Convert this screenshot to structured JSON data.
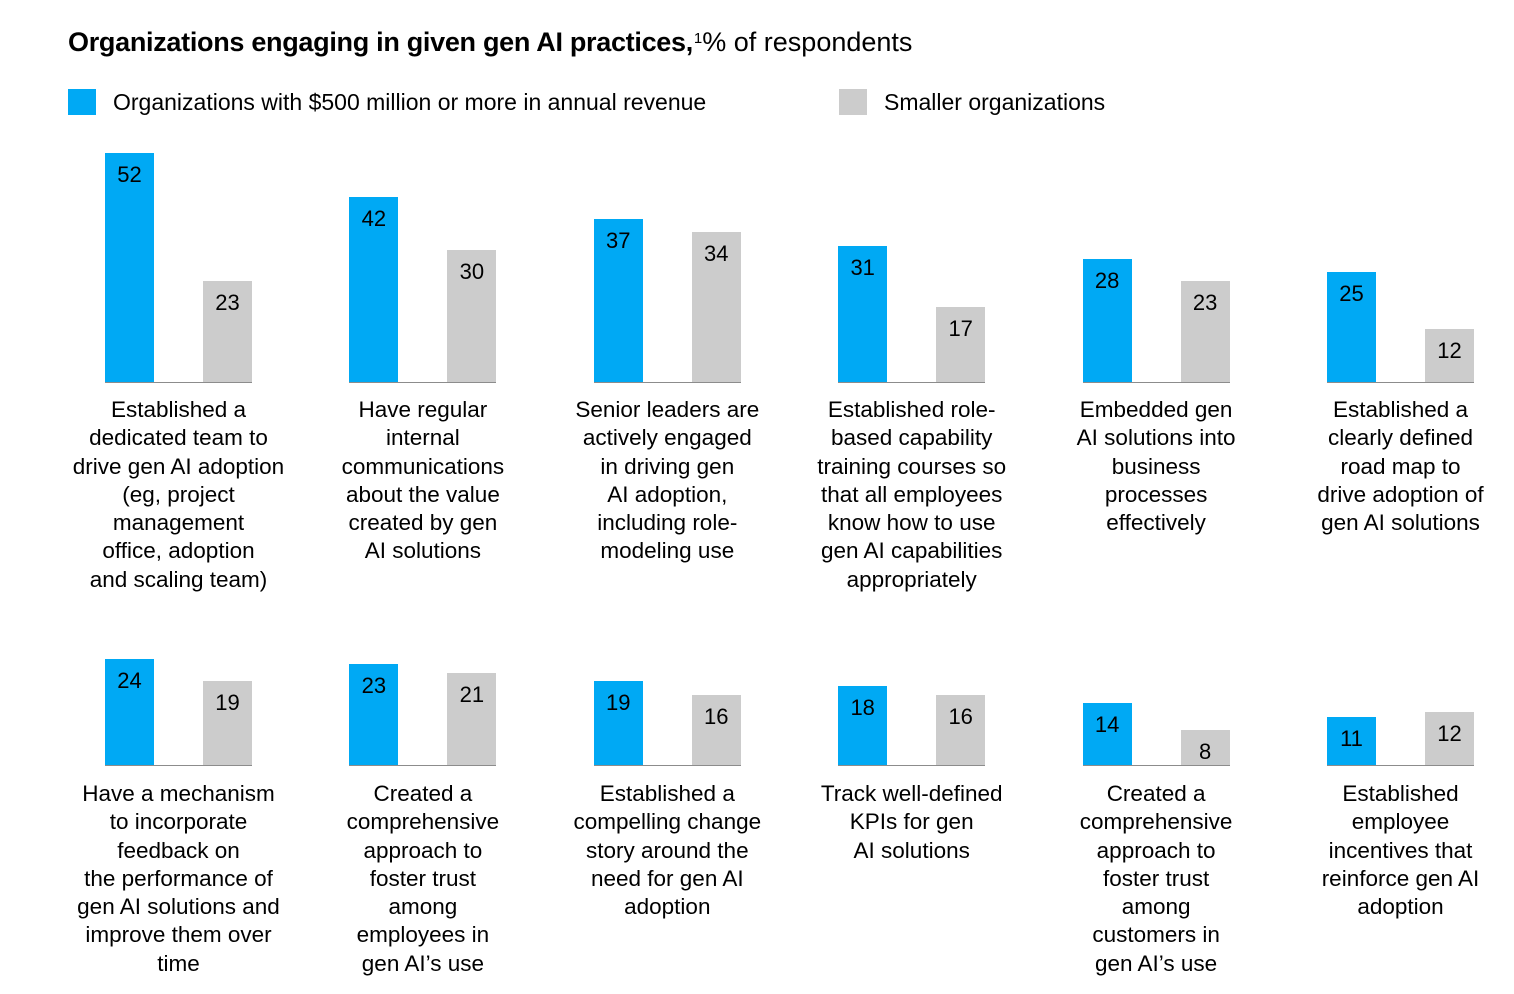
{
  "title": {
    "bold": "Organizations engaging in given gen AI practices,",
    "footnote": "1",
    "rest": "% of respondents"
  },
  "legend": [
    {
      "label": "Organizations with $500 million or more in annual revenue",
      "color": "#00a9f4"
    },
    {
      "label": "Smaller organizations",
      "color": "#cccccc"
    }
  ],
  "chart_data": {
    "type": "bar",
    "unit": "% of respondents",
    "series": [
      {
        "name": "Organizations with $500 million or more in annual revenue",
        "color": "#00a9f4",
        "values": [
          52,
          42,
          37,
          31,
          28,
          25,
          24,
          23,
          19,
          18,
          14,
          11
        ]
      },
      {
        "name": "Smaller organizations",
        "color": "#cccccc",
        "values": [
          23,
          30,
          34,
          17,
          23,
          12,
          19,
          21,
          16,
          16,
          8,
          12
        ]
      }
    ],
    "categories": [
      "Established a\ndedicated team to\ndrive gen AI adoption\n(eg, project\nmanagement\noffice, adoption\nand scaling team)",
      "Have regular\ninternal\ncommunications\nabout the value\ncreated by gen\nAI solutions",
      "Senior leaders are\nactively engaged\nin driving gen\nAI adoption,\nincluding role-\nmodeling use",
      "Established role-\nbased capability\ntraining courses so\nthat all employees\nknow how to use\ngen AI capabilities\nappropriately",
      "Embedded gen\nAI solutions into\nbusiness\nprocesses\neffectively",
      "Established a\nclearly defined\nroad map to\ndrive adoption of\ngen AI solutions",
      "Have a mechanism\nto incorporate\nfeedback on\nthe performance of\ngen AI solutions and\nimprove them over\ntime",
      "Created a\ncomprehensive\napproach to\nfoster trust\namong\nemployees in\ngen AI’s use",
      "Established a\ncompelling change\nstory around the\nneed for gen AI\nadoption",
      "Track well-defined\nKPIs for gen\nAI solutions",
      "Created a\ncomprehensive\napproach to\nfoster trust\namong\ncustomers in\ngen AI’s use",
      "Established\nemployee\nincentives that\nreinforce gen AI\nadoption"
    ]
  }
}
